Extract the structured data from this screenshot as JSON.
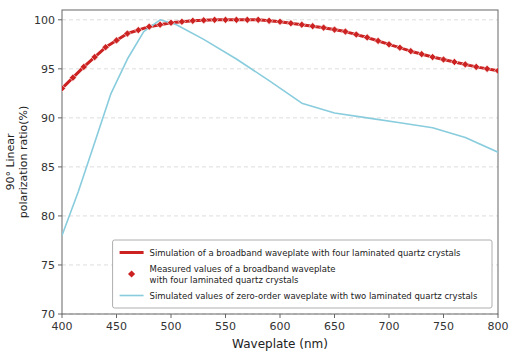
{
  "chart_data": {
    "type": "line",
    "xlabel": "Waveplate (nm)",
    "ylabel": "90° Linear\npolarization ratio(%)",
    "xlim": [
      400,
      800
    ],
    "ylim": [
      70,
      101
    ],
    "xticks": [
      400,
      450,
      500,
      550,
      600,
      650,
      700,
      750,
      800
    ],
    "yticks": [
      70,
      75,
      80,
      85,
      90,
      95,
      100
    ],
    "grid": "y",
    "legend": "lower right",
    "series": [
      {
        "name": "Simulation of a broadband waveplate with four laminated quartz crystals",
        "type": "line",
        "color": "#cc2222",
        "x": [
          400,
          420,
          440,
          460,
          480,
          500,
          520,
          540,
          560,
          580,
          600,
          620,
          640,
          660,
          680,
          700,
          720,
          740,
          760,
          780,
          800
        ],
        "values": [
          93.0,
          95.2,
          97.2,
          98.6,
          99.3,
          99.7,
          99.9,
          100.0,
          100.0,
          100.0,
          99.8,
          99.5,
          99.2,
          98.8,
          98.2,
          97.5,
          96.8,
          96.2,
          95.7,
          95.2,
          94.8
        ]
      },
      {
        "name": "Measured values of a broadband waveplate\nwith four laminated quartz crystals",
        "type": "scatter",
        "marker": "diamond",
        "color": "#cc2222",
        "x": [
          400,
          410,
          420,
          430,
          440,
          450,
          460,
          470,
          480,
          490,
          500,
          510,
          520,
          530,
          540,
          550,
          560,
          570,
          580,
          590,
          600,
          610,
          620,
          630,
          640,
          650,
          660,
          670,
          680,
          690,
          700,
          710,
          720,
          730,
          740,
          750,
          760,
          770,
          780,
          790,
          800
        ],
        "values": [
          93.0,
          94.1,
          95.2,
          96.2,
          97.2,
          97.9,
          98.6,
          98.95,
          99.3,
          99.5,
          99.7,
          99.8,
          99.9,
          99.95,
          100.0,
          100.0,
          100.0,
          100.0,
          100.0,
          99.9,
          99.8,
          99.65,
          99.5,
          99.35,
          99.2,
          99.0,
          98.8,
          98.5,
          98.2,
          97.85,
          97.5,
          97.15,
          96.8,
          96.5,
          96.2,
          95.95,
          95.7,
          95.45,
          95.2,
          95.0,
          94.8
        ]
      },
      {
        "name": "Simulated values of zero-order waveplate with two laminated quartz crystals",
        "type": "line",
        "color": "#88ccdd",
        "x": [
          400,
          415,
          430,
          445,
          460,
          475,
          490,
          505,
          530,
          560,
          590,
          620,
          650,
          680,
          710,
          740,
          770,
          800
        ],
        "values": [
          78.0,
          82.5,
          87.5,
          92.5,
          96.0,
          98.8,
          100.0,
          99.5,
          98.0,
          96.0,
          93.8,
          91.5,
          90.5,
          90.0,
          89.5,
          89.0,
          88.0,
          86.5
        ]
      }
    ]
  }
}
